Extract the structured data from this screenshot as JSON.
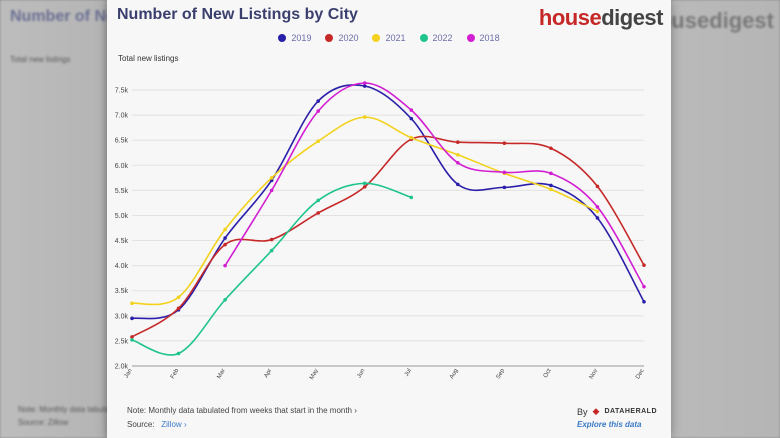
{
  "background": {
    "faint_title": "Number of New Listings by City",
    "faint_brand": "housedigest",
    "faint_subtitle": "Total new listings",
    "faint_note": "Note: Monthly data tabulated",
    "faint_source": "Source:  Zillow"
  },
  "header": {
    "title": "Number of New Listings by City",
    "brand_part1": "house",
    "brand_part2": "digest"
  },
  "chart_data": {
    "type": "line",
    "title": "Number of New Listings by City",
    "ylabel": "Total new listings",
    "xlabel": "",
    "x": [
      "Jan",
      "Feb",
      "Mar",
      "Apr",
      "May",
      "Jun",
      "Jul",
      "Aug",
      "Sep",
      "Oct",
      "Nov",
      "Dec"
    ],
    "ylim": [
      2000,
      7700
    ],
    "yticks": [
      2000,
      2500,
      3000,
      3500,
      4000,
      4500,
      5000,
      5500,
      6000,
      6500,
      7000,
      7500
    ],
    "ytick_labels": [
      "2.0k",
      "2.5k",
      "3.0k",
      "3.5k",
      "4.0k",
      "4.5k",
      "5.0k",
      "5.5k",
      "6.0k",
      "6.5k",
      "7.0k",
      "7.5k"
    ],
    "legend_position": "top-center",
    "grid": true,
    "series": [
      {
        "name": "2019",
        "color": "#2a1fa8",
        "values": [
          2950,
          3120,
          4550,
          5700,
          7280,
          7580,
          6930,
          5620,
          5560,
          5600,
          4950,
          3280
        ]
      },
      {
        "name": "2020",
        "color": "#c62828",
        "values": [
          2580,
          3150,
          4420,
          4520,
          5050,
          5570,
          6520,
          6460,
          6440,
          6340,
          5580,
          4010
        ]
      },
      {
        "name": "2021",
        "color": "#f2d21c",
        "values": [
          3250,
          3370,
          4720,
          5750,
          6480,
          6960,
          6550,
          6210,
          5840,
          5520,
          5080,
          null
        ]
      },
      {
        "name": "2022",
        "color": "#1fc48a",
        "values": [
          2520,
          2250,
          3320,
          4300,
          5300,
          5640,
          5360,
          null,
          null,
          null,
          null,
          null
        ]
      },
      {
        "name": "2018",
        "color": "#d21fd2",
        "values": [
          null,
          null,
          4000,
          5500,
          7080,
          7640,
          7100,
          6050,
          5860,
          5840,
          5170,
          3580
        ]
      }
    ]
  },
  "footer": {
    "note": "Note: Monthly data tabulated from weeks that start in the month",
    "note_arrow": "›",
    "source_label": "Source:",
    "source_link": "Zillow",
    "source_arrow": "›",
    "by_label": "By",
    "logo_text": "DATAHERALD",
    "explore": "Explore this data"
  }
}
